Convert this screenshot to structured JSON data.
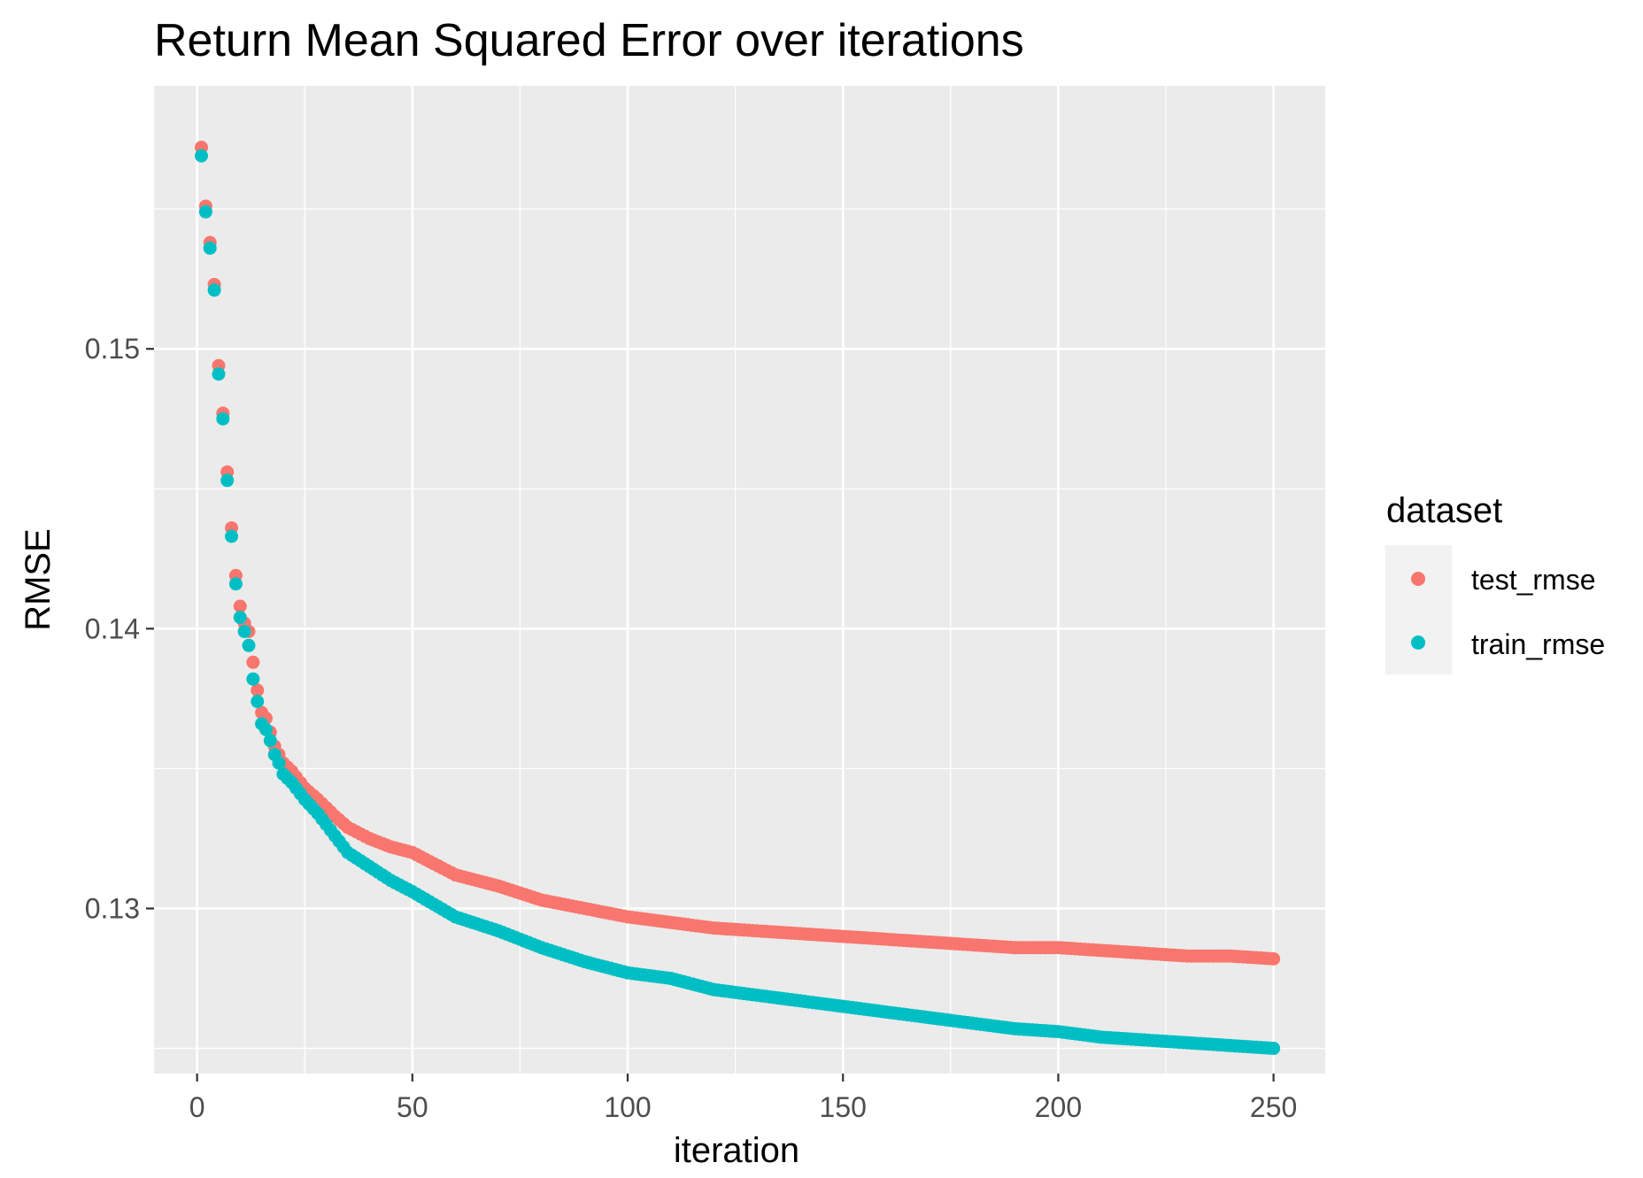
{
  "chart_data": {
    "type": "scatter",
    "title": "Return Mean Squared Error over iterations",
    "xlabel": "iteration",
    "ylabel": "RMSE",
    "xlim": [
      -10,
      262
    ],
    "ylim": [
      0.1241,
      0.1594
    ],
    "x_ticks": [
      0,
      50,
      100,
      150,
      200,
      250
    ],
    "x_tick_labels": [
      "0",
      "50",
      "100",
      "150",
      "200",
      "250"
    ],
    "y_ticks": [
      0.13,
      0.14,
      0.15
    ],
    "y_tick_labels": [
      "0.13",
      "0.14",
      "0.15"
    ],
    "y_minor_ticks": [
      0.125,
      0.135,
      0.145,
      0.155
    ],
    "x_minor_ticks": [
      25,
      75,
      125,
      175,
      225
    ],
    "grid": true,
    "panel_background": "#ebebeb",
    "grid_color": "#ffffff",
    "legend_position": "right",
    "legend_title": "dataset",
    "series": [
      {
        "name": "test_rmse",
        "color": "#f8766d",
        "anchors": [
          [
            1,
            0.1572
          ],
          [
            2,
            0.1551
          ],
          [
            3,
            0.1538
          ],
          [
            4,
            0.1523
          ],
          [
            5,
            0.1494
          ],
          [
            6,
            0.1477
          ],
          [
            7,
            0.1456
          ],
          [
            8,
            0.1436
          ],
          [
            9,
            0.1419
          ],
          [
            10,
            0.1408
          ],
          [
            11,
            0.1402
          ],
          [
            12,
            0.1399
          ],
          [
            13,
            0.1388
          ],
          [
            14,
            0.1378
          ],
          [
            15,
            0.137
          ],
          [
            16,
            0.1368
          ],
          [
            17,
            0.1363
          ],
          [
            18,
            0.1358
          ],
          [
            19,
            0.1355
          ],
          [
            20,
            0.1352
          ],
          [
            22,
            0.1349
          ],
          [
            25,
            0.1343
          ],
          [
            28,
            0.1339
          ],
          [
            30,
            0.1336
          ],
          [
            32,
            0.1333
          ],
          [
            35,
            0.1329
          ],
          [
            40,
            0.1325
          ],
          [
            45,
            0.1322
          ],
          [
            50,
            0.132
          ],
          [
            60,
            0.1312
          ],
          [
            70,
            0.1308
          ],
          [
            80,
            0.1303
          ],
          [
            90,
            0.13
          ],
          [
            100,
            0.1297
          ],
          [
            110,
            0.1295
          ],
          [
            120,
            0.1293
          ],
          [
            130,
            0.1292
          ],
          [
            140,
            0.1291
          ],
          [
            150,
            0.129
          ],
          [
            160,
            0.1289
          ],
          [
            170,
            0.1288
          ],
          [
            180,
            0.1287
          ],
          [
            190,
            0.1286
          ],
          [
            200,
            0.1286
          ],
          [
            210,
            0.1285
          ],
          [
            220,
            0.1284
          ],
          [
            230,
            0.1283
          ],
          [
            240,
            0.1283
          ],
          [
            250,
            0.1282
          ]
        ]
      },
      {
        "name": "train_rmse",
        "color": "#00bfc4",
        "anchors": [
          [
            1,
            0.1569
          ],
          [
            2,
            0.1549
          ],
          [
            3,
            0.1536
          ],
          [
            4,
            0.1521
          ],
          [
            5,
            0.1491
          ],
          [
            6,
            0.1475
          ],
          [
            7,
            0.1453
          ],
          [
            8,
            0.1433
          ],
          [
            9,
            0.1416
          ],
          [
            10,
            0.1404
          ],
          [
            11,
            0.1399
          ],
          [
            12,
            0.1394
          ],
          [
            13,
            0.1382
          ],
          [
            14,
            0.1374
          ],
          [
            15,
            0.1366
          ],
          [
            16,
            0.1364
          ],
          [
            17,
            0.136
          ],
          [
            18,
            0.1355
          ],
          [
            19,
            0.1352
          ],
          [
            20,
            0.1348
          ],
          [
            22,
            0.1345
          ],
          [
            25,
            0.1339
          ],
          [
            28,
            0.1334
          ],
          [
            30,
            0.133
          ],
          [
            32,
            0.1326
          ],
          [
            35,
            0.132
          ],
          [
            40,
            0.1315
          ],
          [
            45,
            0.131
          ],
          [
            50,
            0.1306
          ],
          [
            60,
            0.1297
          ],
          [
            70,
            0.1292
          ],
          [
            80,
            0.1286
          ],
          [
            90,
            0.1281
          ],
          [
            100,
            0.1277
          ],
          [
            110,
            0.1275
          ],
          [
            120,
            0.1271
          ],
          [
            130,
            0.1269
          ],
          [
            140,
            0.1267
          ],
          [
            150,
            0.1265
          ],
          [
            160,
            0.1263
          ],
          [
            170,
            0.1261
          ],
          [
            180,
            0.1259
          ],
          [
            190,
            0.1257
          ],
          [
            200,
            0.1256
          ],
          [
            210,
            0.1254
          ],
          [
            220,
            0.1253
          ],
          [
            230,
            0.1252
          ],
          [
            240,
            0.1251
          ],
          [
            250,
            0.125
          ]
        ]
      }
    ]
  }
}
